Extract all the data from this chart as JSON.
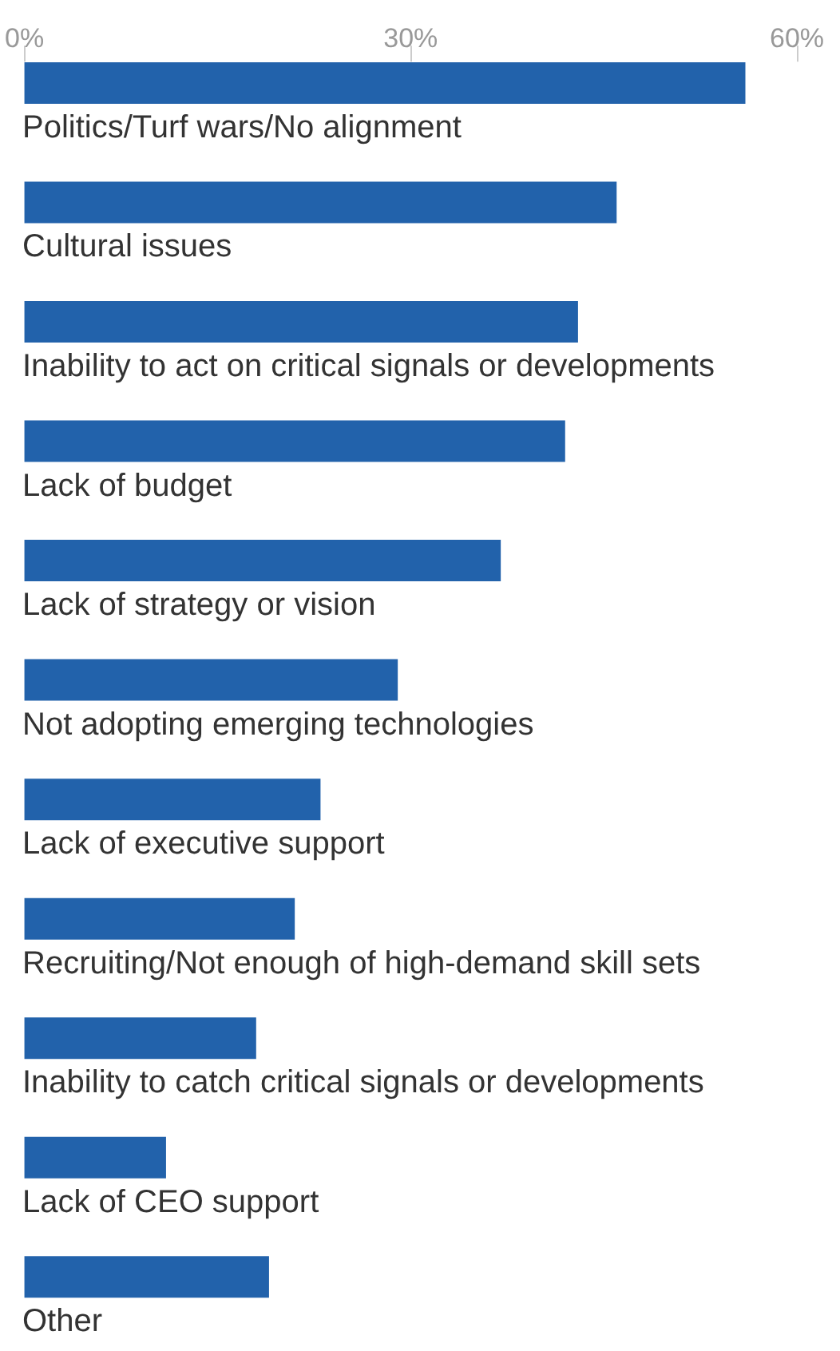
{
  "chart_data": {
    "type": "bar",
    "orientation": "horizontal",
    "categories": [
      "Politics/Turf wars/No alignment",
      "Cultural issues",
      "Inability to act on critical signals or developments",
      "Lack of budget",
      "Lack of strategy or vision",
      "Not adopting emerging technologies",
      "Lack of executive support",
      "Recruiting/Not enough of high-demand skill sets",
      "Inability to catch critical signals or developments",
      "Lack of CEO support",
      "Other"
    ],
    "values": [
      56,
      46,
      43,
      42,
      37,
      29,
      23,
      21,
      18,
      11,
      19
    ],
    "color": "#2262ab",
    "xlim": [
      0,
      60
    ],
    "xticks": [
      {
        "value": 0,
        "label": "0%"
      },
      {
        "value": 30,
        "label": "30%"
      },
      {
        "value": 60,
        "label": "60%"
      }
    ],
    "grid": false
  }
}
